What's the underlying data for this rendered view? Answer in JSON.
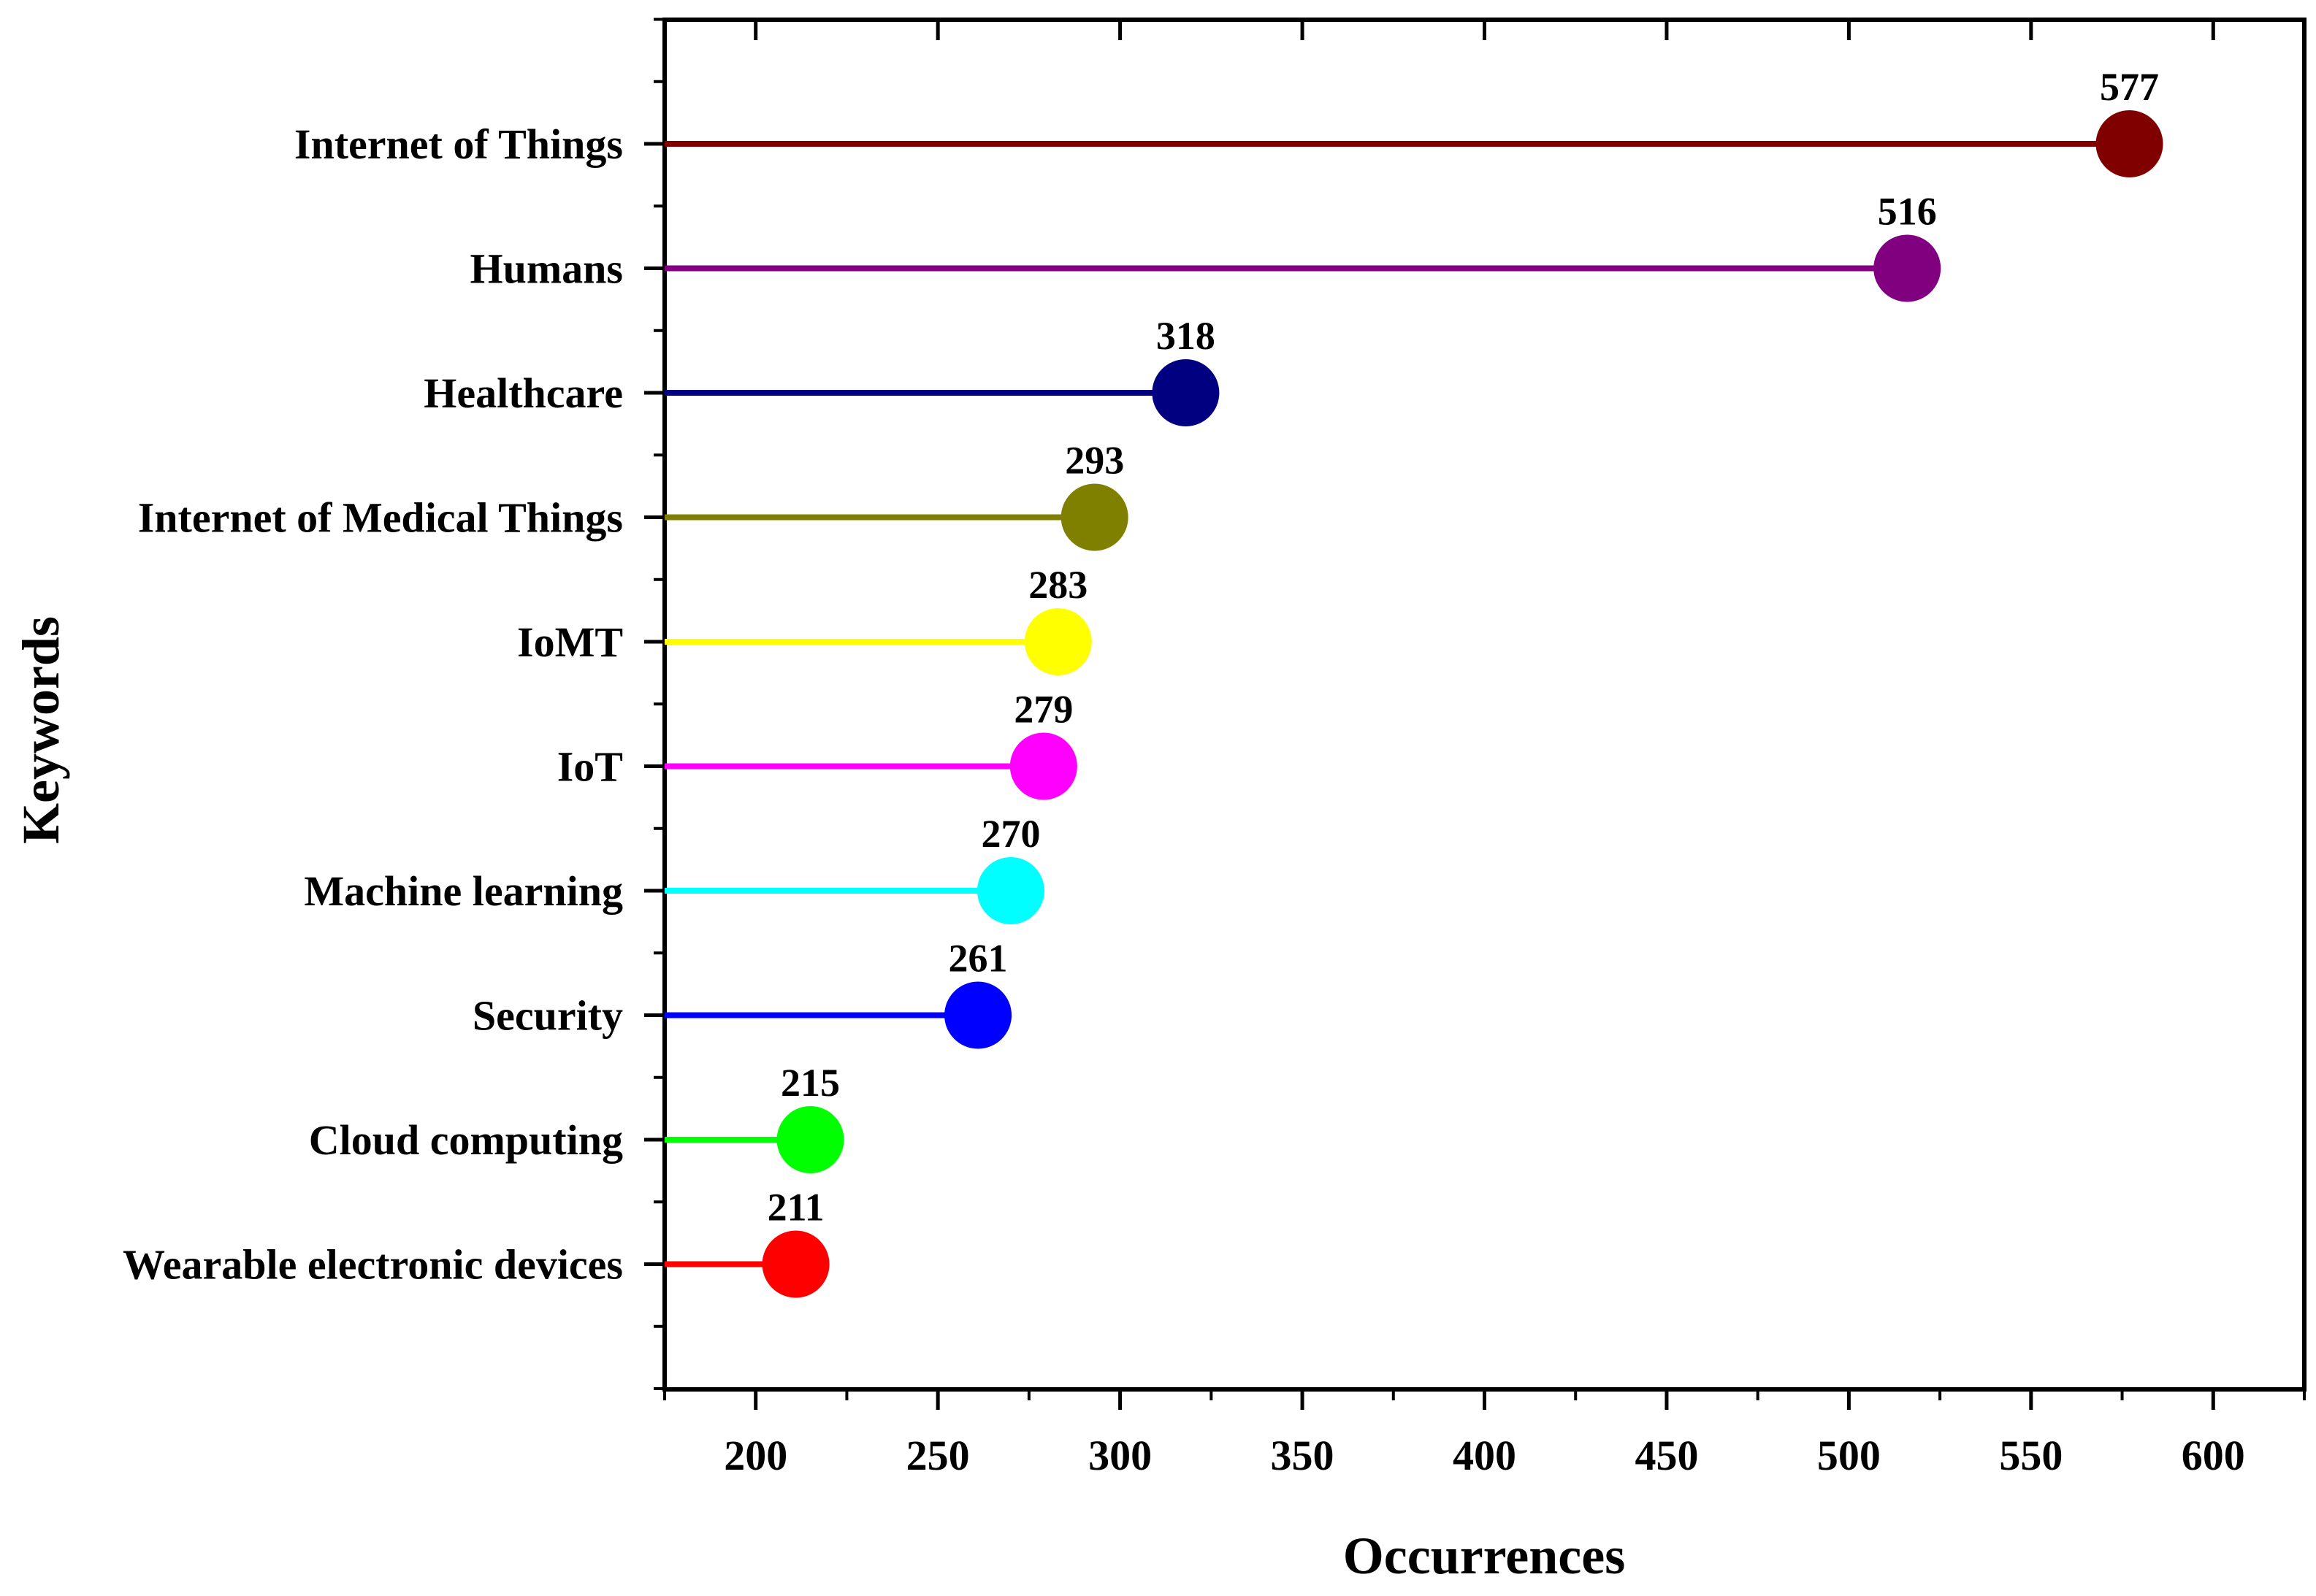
{
  "chart_data": {
    "type": "lollipop",
    "xlabel": "Occurrences",
    "ylabel": "Keywords",
    "xlim": [
      175,
      625
    ],
    "xticks": [
      200,
      250,
      300,
      350,
      400,
      450,
      500,
      550,
      600
    ],
    "grid": false,
    "categories": [
      "Internet of Things",
      "Humans",
      "Healthcare",
      "Internet of Medical Things",
      "IoMT",
      "IoT",
      "Machine learning",
      "Security",
      "Cloud computing",
      "Wearable electronic devices"
    ],
    "values": [
      577,
      516,
      318,
      293,
      283,
      279,
      270,
      261,
      215,
      211
    ],
    "colors": [
      "#800000",
      "#800080",
      "#000080",
      "#808000",
      "#FFFF00",
      "#FF00FF",
      "#00FFFF",
      "#0000FF",
      "#00FF00",
      "#FF0000"
    ]
  }
}
